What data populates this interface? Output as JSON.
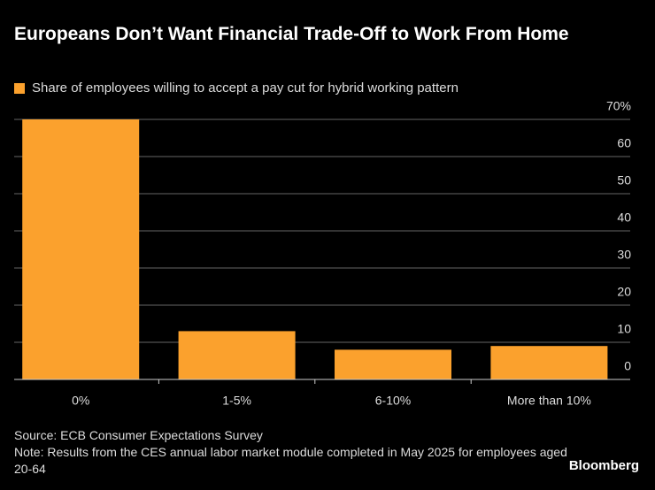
{
  "chart_data": {
    "type": "bar",
    "title": "Europeans Don’t Want Financial Trade-Off to Work From Home",
    "categories": [
      "0%",
      "1-5%",
      "6-10%",
      "More than 10%"
    ],
    "series": [
      {
        "name": "Share of employees willing to accept a pay cut for hybrid working pattern",
        "color": "#fba12d",
        "values": [
          70,
          13,
          8,
          9
        ]
      }
    ],
    "ylim": [
      0,
      70
    ],
    "yticks": [
      0,
      10,
      20,
      30,
      40,
      50,
      60,
      {
        "value": 70,
        "label": "70%"
      }
    ],
    "grid": true,
    "source": "Source: ECB Consumer Expectations Survey",
    "note": "Note: Results from the CES annual labor market module completed in May 2025 for employees aged 20-64",
    "brand": "Bloomberg"
  }
}
